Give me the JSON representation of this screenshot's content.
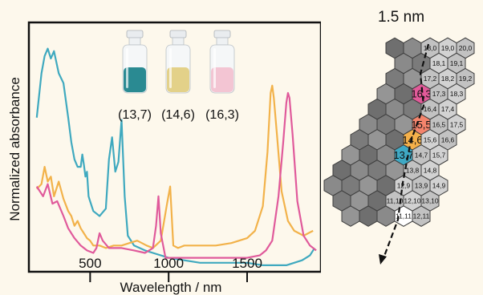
{
  "chart_data": {
    "type": "line",
    "xlabel": "Wavelength / nm",
    "ylabel": "Normalized absorbance",
    "xlim": [
      120,
      1960
    ],
    "ylim": [
      0,
      1
    ],
    "x_ticks": [
      500,
      1000,
      1500
    ],
    "tick_labels": [
      "500",
      "1000",
      "1500"
    ],
    "grid": false,
    "legend": "vial photos top-center",
    "series": [
      {
        "color": "#3fa9bf",
        "x": [
          160,
          190,
          210,
          230,
          250,
          270,
          300,
          330,
          360,
          380,
          400,
          420,
          440,
          450,
          460,
          470,
          480,
          490,
          500,
          520,
          560,
          600,
          620,
          640,
          660,
          680,
          700,
          720,
          740,
          780,
          850,
          900,
          1000,
          1100,
          1200,
          1300,
          1400,
          1500,
          1600,
          1700,
          1750,
          1800,
          1850,
          1900,
          1930
        ],
        "y": [
          0.62,
          0.8,
          0.87,
          0.9,
          0.86,
          0.89,
          0.8,
          0.76,
          0.62,
          0.52,
          0.45,
          0.42,
          0.42,
          0.47,
          0.43,
          0.38,
          0.4,
          0.3,
          0.28,
          0.24,
          0.22,
          0.25,
          0.45,
          0.54,
          0.4,
          0.44,
          0.61,
          0.3,
          0.14,
          0.1,
          0.08,
          0.07,
          0.05,
          0.04,
          0.03,
          0.03,
          0.03,
          0.03,
          0.02,
          0.02,
          0.02,
          0.03,
          0.04,
          0.06,
          0.09
        ]
      },
      {
        "color": "#f2b24a",
        "x": [
          160,
          190,
          210,
          230,
          250,
          270,
          300,
          330,
          360,
          380,
          400,
          420,
          440,
          460,
          480,
          500,
          520,
          560,
          600,
          650,
          700,
          750,
          800,
          860,
          900,
          950,
          990,
          1010,
          1030,
          1060,
          1100,
          1200,
          1300,
          1400,
          1500,
          1550,
          1600,
          1630,
          1650,
          1660,
          1670,
          1690,
          1720,
          1760,
          1800,
          1860,
          1920
        ],
        "y": [
          0.33,
          0.35,
          0.42,
          0.36,
          0.38,
          0.3,
          0.36,
          0.29,
          0.24,
          0.22,
          0.18,
          0.2,
          0.17,
          0.15,
          0.13,
          0.12,
          0.1,
          0.1,
          0.09,
          0.1,
          0.1,
          0.11,
          0.12,
          0.1,
          0.09,
          0.12,
          0.27,
          0.34,
          0.1,
          0.09,
          0.1,
          0.1,
          0.1,
          0.11,
          0.13,
          0.16,
          0.26,
          0.48,
          0.72,
          0.75,
          0.7,
          0.55,
          0.32,
          0.2,
          0.16,
          0.14,
          0.16
        ]
      },
      {
        "color": "#e05a9b",
        "x": [
          160,
          200,
          230,
          260,
          290,
          330,
          360,
          400,
          440,
          480,
          520,
          540,
          560,
          580,
          620,
          700,
          780,
          850,
          900,
          920,
          935,
          950,
          980,
          1050,
          1100,
          1200,
          1300,
          1400,
          1500,
          1580,
          1620,
          1660,
          1700,
          1730,
          1750,
          1760,
          1770,
          1790,
          1820,
          1860,
          1900,
          1940
        ],
        "y": [
          0.34,
          0.3,
          0.35,
          0.27,
          0.28,
          0.22,
          0.17,
          0.13,
          0.1,
          0.08,
          0.07,
          0.09,
          0.15,
          0.12,
          0.09,
          0.09,
          0.08,
          0.07,
          0.09,
          0.18,
          0.3,
          0.15,
          0.05,
          0.05,
          0.05,
          0.05,
          0.05,
          0.05,
          0.05,
          0.06,
          0.08,
          0.12,
          0.3,
          0.52,
          0.68,
          0.72,
          0.7,
          0.55,
          0.28,
          0.14,
          0.1,
          0.08
        ]
      }
    ]
  },
  "vials": [
    {
      "label": "(13,7)",
      "liquid": "#2a8a92"
    },
    {
      "label": "(14,6)",
      "liquid": "#e3d189"
    },
    {
      "label": "(16,3)",
      "liquid": "#f3c5d3"
    }
  ],
  "hex_map": {
    "title": "1.5 nm",
    "highlight_colors": {
      "16,3": "#e25a99",
      "15,5": "#f4846c",
      "14,6": "#f4b04a",
      "13,7": "#3fa9c4"
    },
    "rows": [
      {
        "cells": [
          "18,0",
          "19,0",
          "20,0"
        ],
        "offset": 1
      },
      {
        "cells": [
          "18,1",
          "19,1"
        ],
        "offset": 1.5
      },
      {
        "cells": [
          "17,2",
          "18,2",
          "19,2"
        ],
        "offset": 1
      },
      {
        "cells": [
          "16,3",
          "17,3",
          "18,3"
        ],
        "offset": 0.5
      },
      {
        "cells": [
          "16,4",
          "17,4"
        ],
        "offset": 1
      },
      {
        "cells": [
          "15,5",
          "16,5",
          "17,5"
        ],
        "offset": 0.5
      },
      {
        "cells": [
          "14,6",
          "15,6",
          "16,6"
        ],
        "offset": 0
      },
      {
        "cells": [
          "13,7",
          "14,7",
          "15,7"
        ],
        "offset": -0.5
      },
      {
        "cells": [
          "13,8",
          "14,8"
        ],
        "offset": 0
      },
      {
        "cells": [
          "12,9",
          "13,9",
          "14,9"
        ],
        "offset": -0.5
      },
      {
        "cells": [
          "11,10",
          "12,10",
          "13,10"
        ],
        "offset": -1
      },
      {
        "cells": [
          "11,11",
          "12,11"
        ],
        "offset": -0.5
      }
    ]
  }
}
